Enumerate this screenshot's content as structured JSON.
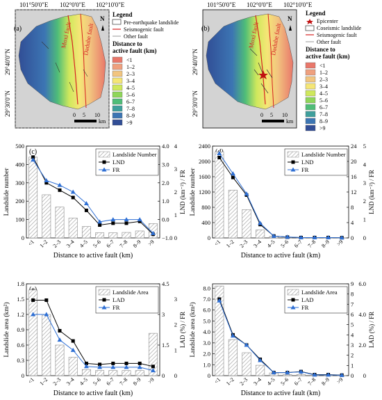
{
  "maps": [
    {
      "panel": "(a)",
      "top_ticks": [
        "101°50'0\"E",
        "102°0'0\"E",
        "102°10'0\"E"
      ],
      "left_ticks": [
        "29°40'0\"N",
        "29°30'0\"N"
      ],
      "north": "N",
      "fault_labels": [
        "Moxi fault",
        "Daduhe fault"
      ],
      "legend_title": "Legend",
      "legend_items": [
        "Pre-earthquake landslide",
        "Seismogenic fault",
        "Other fault"
      ],
      "distance_title_1": "Distance to",
      "distance_title_2": "active fault (km)",
      "distance_classes": [
        "<1",
        "1–2",
        "2–3",
        "3–4",
        "4–5",
        "5–6",
        "6–7",
        "7–8",
        "8–9",
        ">9"
      ],
      "scale_ticks": [
        "0",
        "5",
        "10"
      ],
      "scale_unit": "km"
    },
    {
      "panel": "(b)",
      "top_ticks": [
        "101°50'0\"E",
        "102°0'0\"E",
        "102°10'0\"E"
      ],
      "left_ticks": [
        "29°40'0\"N",
        "29°30'0\"N"
      ],
      "north": "N",
      "fault_labels": [
        "Moxi fault",
        "Daduhe fault"
      ],
      "legend_title": "Legend",
      "legend_items": [
        "Epicenter",
        "Coseismic landslide",
        "Seismogenic fault",
        "Other fault"
      ],
      "distance_title_1": "Distance to",
      "distance_title_2": "active fault (km)",
      "distance_classes": [
        "<1",
        "1–2",
        "2–3",
        "3–4",
        "4–5",
        "5–6",
        "6–7",
        "7–8",
        "8–9",
        ">9"
      ],
      "scale_ticks": [
        "0",
        "5",
        "10"
      ],
      "scale_unit": "km"
    }
  ],
  "class_colors": [
    "#e9776a",
    "#efa07e",
    "#f2c57f",
    "#f5e676",
    "#cfe85c",
    "#8fd65a",
    "#4fbd78",
    "#3f9f9c",
    "#3c75b3",
    "#314e96"
  ],
  "colors": {
    "bar_hatch": "#9a9a9a",
    "line1": "#000000",
    "line2": "#2e6fd4",
    "fault": "#d62020"
  },
  "chart_data": [
    {
      "panel": "(c)",
      "type": "bar+line",
      "categories": [
        "<1",
        "1–2",
        "2–3",
        "3–4",
        "4–5",
        "5–6",
        "6–7",
        "7–8",
        "8–9",
        ">9"
      ],
      "xlabel": "Distance to active fault (km)",
      "ylabel_left": "Landslide number",
      "ylabel_right": "LND (km⁻²) / FR",
      "left_ticks": [
        "0",
        "100",
        "200",
        "300",
        "400",
        "500"
      ],
      "left_ylim": [
        0,
        500
      ],
      "right_ticks": [
        "−1.0",
        "0.0",
        "1.0",
        "2.0",
        "3.0",
        "4.0"
      ],
      "right_ylim": [
        -1,
        4
      ],
      "inner_ticks": [
        "0",
        "1",
        "2",
        "3",
        "4"
      ],
      "inner_ylim": [
        0,
        4
      ],
      "series": [
        {
          "name": "Landslide Number",
          "kind": "bar",
          "axis": "left",
          "values": [
            440,
            235,
            168,
            108,
            62,
            28,
            28,
            30,
            38,
            78
          ]
        },
        {
          "name": "LND",
          "kind": "line",
          "marker": "square",
          "axis": "right",
          "values": [
            3.4,
            2.0,
            1.6,
            1.2,
            0.5,
            -0.3,
            -0.2,
            -0.2,
            -0.1,
            -0.8
          ]
        },
        {
          "name": "FR",
          "kind": "line",
          "marker": "triangle",
          "axis": "inner",
          "values": [
            3.4,
            2.5,
            2.3,
            2.0,
            1.5,
            0.7,
            0.8,
            0.8,
            0.8,
            0.2
          ]
        }
      ]
    },
    {
      "panel": "(d)",
      "type": "bar+line",
      "categories": [
        "<1",
        "1–2",
        "2–3",
        "3–4",
        "4–5",
        "5–6",
        "6–7",
        "7–8",
        "8–9",
        ">9"
      ],
      "xlabel": "Distance to active fault (km)",
      "ylabel_left": "Landslide number",
      "ylabel_right": "LND (km⁻²) / FR",
      "left_ticks": [
        "0",
        "400",
        "800",
        "1200",
        "1600",
        "2000",
        "2400"
      ],
      "left_ylim": [
        0,
        2400
      ],
      "right_ticks": [
        "0",
        "4",
        "8",
        "12",
        "16",
        "20",
        "24"
      ],
      "right_ylim": [
        0,
        24
      ],
      "inner_ticks": [
        "0",
        "1",
        "2",
        "3",
        "4",
        "5"
      ],
      "inner_ylim": [
        0,
        5
      ],
      "series": [
        {
          "name": "Landslide Number",
          "kind": "bar",
          "axis": "left",
          "values": [
            2250,
            1250,
            740,
            210,
            40,
            10,
            8,
            6,
            5,
            3
          ]
        },
        {
          "name": "LND",
          "kind": "line",
          "marker": "square",
          "axis": "right",
          "values": [
            21.0,
            15.8,
            11.2,
            3.5,
            0.5,
            0.2,
            0.1,
            0.1,
            0.1,
            0.05
          ]
        },
        {
          "name": "FR",
          "kind": "line",
          "marker": "triangle",
          "axis": "inner",
          "values": [
            4.6,
            3.5,
            2.4,
            0.8,
            0.1,
            0.05,
            0.02,
            0.02,
            0.02,
            0.01
          ]
        }
      ]
    },
    {
      "panel": "(e)",
      "type": "bar+line",
      "categories": [
        "<1",
        "1–2",
        "2–3",
        "3–4",
        "4–5",
        "5–6",
        "6–7",
        "7–8",
        "8–9",
        ">9"
      ],
      "xlabel": "Distance to active fault (km)",
      "ylabel_left": "Landslide area (km²)",
      "ylabel_right": "LAD (%) / FR",
      "left_ticks": [
        "0",
        "0.3",
        "0.6",
        "0.9",
        "1.2",
        "1.5",
        "1.8"
      ],
      "left_ylim": [
        0,
        1.8
      ],
      "right_ticks": [
        "0",
        "1.5",
        "3",
        "4.5"
      ],
      "right_ylim": [
        0,
        4.5
      ],
      "inner_ticks": [
        "0",
        "1",
        "2",
        "3"
      ],
      "inner_ylim": [
        0,
        3.6
      ],
      "series": [
        {
          "name": "Landslide Area",
          "kind": "bar",
          "axis": "left",
          "values": [
            1.68,
            1.2,
            0.6,
            0.36,
            0.12,
            0.1,
            0.1,
            0.1,
            0.1,
            0.83
          ]
        },
        {
          "name": "LAD",
          "kind": "line",
          "marker": "square",
          "axis": "right",
          "values": [
            3.7,
            3.7,
            2.2,
            1.7,
            0.6,
            0.55,
            0.6,
            0.6,
            0.6,
            0.45
          ]
        },
        {
          "name": "FR",
          "kind": "line",
          "marker": "triangle",
          "axis": "inner",
          "values": [
            2.4,
            2.4,
            1.4,
            1.0,
            0.36,
            0.33,
            0.33,
            0.33,
            0.33,
            0.2
          ]
        }
      ]
    },
    {
      "panel": "(f)",
      "type": "bar+line",
      "categories": [
        "<1",
        "1–2",
        "2–3",
        "3–4",
        "4–5",
        "5–6",
        "6–7",
        "7–8",
        "8–9",
        ">9"
      ],
      "xlabel": "Distance to active fault (km)",
      "ylabel_left": "Landslide area (km²)",
      "ylabel_right": "LAD (%) / FR",
      "left_ticks": [
        "0",
        "1.0",
        "2.0",
        "3.0",
        "4.0",
        "5.0",
        "6.0",
        "7.0",
        "8.0"
      ],
      "left_ylim": [
        0,
        8.4
      ],
      "right_ticks": [
        "0",
        "1",
        "2",
        "3",
        "4",
        "5",
        "6",
        "7",
        "8",
        "9"
      ],
      "right_ylim": [
        0,
        9
      ],
      "inner_ticks": [
        "0",
        "2.0",
        "4.0",
        "6.0"
      ],
      "inner_ylim": [
        0,
        6
      ],
      "series": [
        {
          "name": "Landslide Area",
          "kind": "bar",
          "axis": "left",
          "values": [
            8.2,
            3.3,
            2.1,
            0.95,
            0.25,
            0.1,
            0.1,
            0.05,
            0.05,
            0.02
          ]
        },
        {
          "name": "LAD",
          "kind": "line",
          "marker": "square",
          "axis": "right",
          "values": [
            7.5,
            4.0,
            3.0,
            1.6,
            0.3,
            0.3,
            0.4,
            0.1,
            0.1,
            0.05
          ]
        },
        {
          "name": "FR",
          "kind": "line",
          "marker": "triangle",
          "axis": "inner",
          "values": [
            4.9,
            2.6,
            2.0,
            1.0,
            0.2,
            0.2,
            0.25,
            0.05,
            0.05,
            0.03
          ]
        }
      ]
    }
  ]
}
